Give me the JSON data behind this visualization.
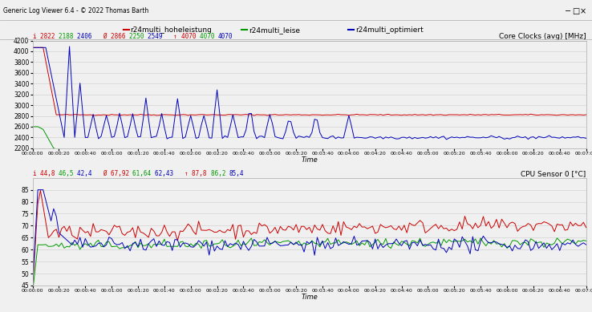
{
  "title_top": "Generic Log Viewer 6.4 - © 2022 Thomas Barth",
  "legend_entries": [
    "r24multi_hoheleistung",
    "r24multi_leise",
    "r24multi_optimiert"
  ],
  "legend_colors": [
    "#cc0000",
    "#009900",
    "#0000bb"
  ],
  "chart1_title": "Core Clocks (avg) [MHz]",
  "chart1_xlabel": "Time",
  "chart1_ylim": [
    2200,
    4200
  ],
  "chart1_yticks": [
    2200,
    2400,
    2600,
    2800,
    3000,
    3200,
    3400,
    3600,
    3800,
    4000,
    4200
  ],
  "chart2_title": "CPU Sensor 0 [°C]",
  "chart2_xlabel": "Time",
  "chart2_ylim": [
    45,
    90
  ],
  "chart2_yticks": [
    45,
    50,
    55,
    60,
    65,
    70,
    75,
    80,
    85
  ],
  "plot_bg_color": "#f0f0f0",
  "window_bg": "#f0f0f0",
  "titlebar_bg": "#c0c0c0",
  "total_seconds": 420,
  "xtick_interval": 20,
  "colors_red": "#cc0000",
  "colors_green": "#009900",
  "colors_blue": "#0000bb",
  "stats1_parts": [
    {
      "text": "i ",
      "color": "#cc0000"
    },
    {
      "text": "2822 ",
      "color": "#cc0000"
    },
    {
      "text": "2188 ",
      "color": "#009900"
    },
    {
      "text": "2406   ",
      "color": "#0000bb"
    },
    {
      "text": "Ø ",
      "color": "#cc0000"
    },
    {
      "text": "2866 ",
      "color": "#cc0000"
    },
    {
      "text": "2250 ",
      "color": "#009900"
    },
    {
      "text": "2549   ",
      "color": "#0000bb"
    },
    {
      "text": "↑ ",
      "color": "#cc0000"
    },
    {
      "text": "4070 ",
      "color": "#cc0000"
    },
    {
      "text": "4070 ",
      "color": "#009900"
    },
    {
      "text": "4070",
      "color": "#0000bb"
    }
  ],
  "stats2_parts": [
    {
      "text": "i ",
      "color": "#cc0000"
    },
    {
      "text": "44,8 ",
      "color": "#cc0000"
    },
    {
      "text": "46,5 ",
      "color": "#009900"
    },
    {
      "text": "42,4   ",
      "color": "#0000bb"
    },
    {
      "text": "Ø ",
      "color": "#cc0000"
    },
    {
      "text": "67,92 ",
      "color": "#cc0000"
    },
    {
      "text": "61,64 ",
      "color": "#009900"
    },
    {
      "text": "62,43   ",
      "color": "#0000bb"
    },
    {
      "text": "↑ ",
      "color": "#cc0000"
    },
    {
      "text": "87,8 ",
      "color": "#cc0000"
    },
    {
      "text": "86,2 ",
      "color": "#009900"
    },
    {
      "text": "85,4",
      "color": "#0000bb"
    }
  ]
}
